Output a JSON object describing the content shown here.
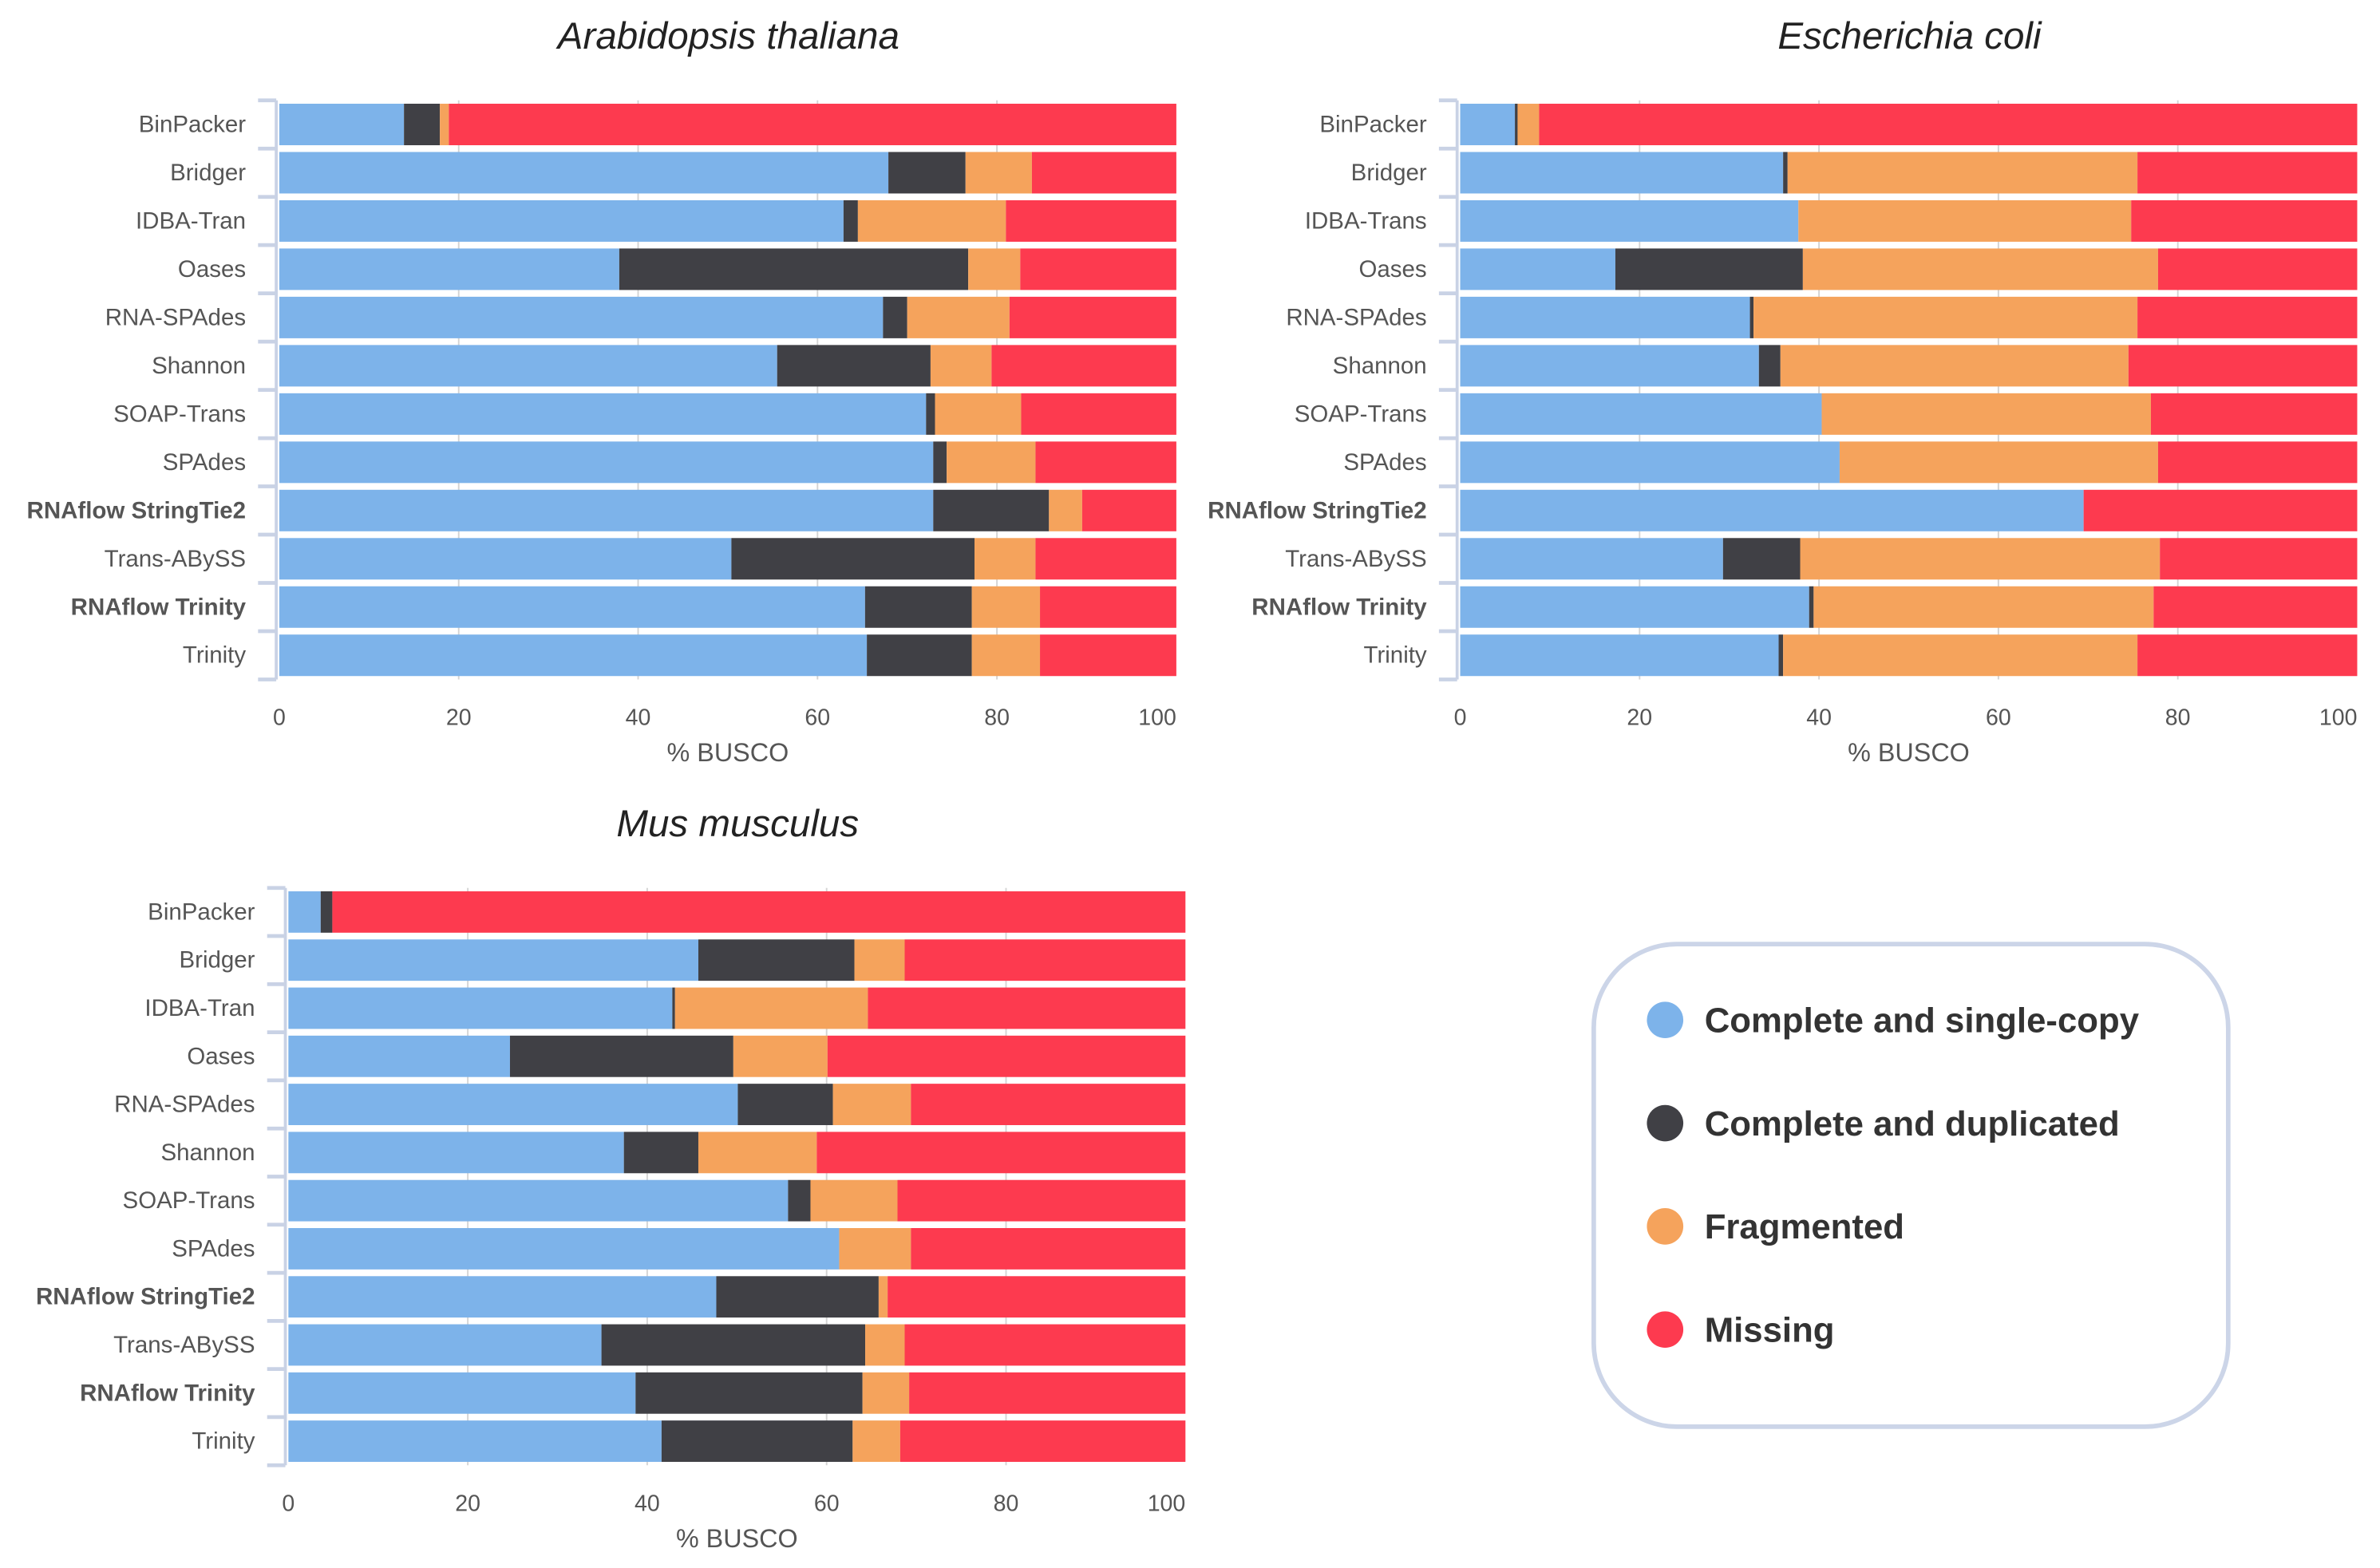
{
  "colors": {
    "Complete and single-copy": "#7db3ea",
    "Complete and duplicated": "#404045",
    "Fragmented": "#f5a35c",
    "Missing": "#fd3a4f"
  },
  "legend": {
    "items": [
      "Complete and single-copy",
      "Complete and duplicated",
      "Fragmented",
      "Missing"
    ],
    "placement": "bottom-right"
  },
  "chart_data": [
    {
      "type": "bar",
      "orientation": "horizontal",
      "stacked": true,
      "title": "Arabidopsis thaliana",
      "xlabel": "% BUSCO",
      "ylabel": "",
      "xlim": [
        0,
        100
      ],
      "xticks": [
        0,
        20,
        40,
        60,
        80,
        100
      ],
      "grid": true,
      "categories": [
        "BinPacker",
        "Bridger",
        "IDBA-Tran",
        "Oases",
        "RNA-SPAdes",
        "Shannon",
        "SOAP-Trans",
        "SPAdes",
        "RNAflow StringTie2",
        "Trans-ABySS",
        "RNAflow Trinity",
        "Trinity"
      ],
      "bold_categories": [
        "RNAflow StringTie2",
        "RNAflow Trinity"
      ],
      "series": [
        {
          "name": "Complete and single-copy",
          "values": [
            13.9,
            67.9,
            62.9,
            37.9,
            67.3,
            55.5,
            72.1,
            72.9,
            72.9,
            50.4,
            65.3,
            65.5
          ]
        },
        {
          "name": "Complete and duplicated",
          "values": [
            4.0,
            8.6,
            1.6,
            38.9,
            2.7,
            17.1,
            1.0,
            1.5,
            12.9,
            27.1,
            11.9,
            11.7
          ]
        },
        {
          "name": "Fragmented",
          "values": [
            1.0,
            7.4,
            16.5,
            5.8,
            11.4,
            6.8,
            9.6,
            9.9,
            3.7,
            6.8,
            7.6,
            7.6
          ]
        },
        {
          "name": "Missing",
          "values": [
            81.1,
            16.1,
            19.0,
            17.4,
            18.6,
            20.6,
            17.3,
            15.7,
            10.5,
            15.7,
            15.2,
            15.2
          ]
        }
      ]
    },
    {
      "type": "bar",
      "orientation": "horizontal",
      "stacked": true,
      "title": "Escherichia coli",
      "xlabel": "% BUSCO",
      "ylabel": "",
      "xlim": [
        0,
        100
      ],
      "xticks": [
        0,
        20,
        40,
        60,
        80,
        100
      ],
      "grid": true,
      "categories": [
        "BinPacker",
        "Bridger",
        "IDBA-Trans",
        "Oases",
        "RNA-SPAdes",
        "Shannon",
        "SOAP-Trans",
        "SPAdes",
        "RNAflow StringTie2",
        "Trans-ABySS",
        "RNAflow Trinity",
        "Trinity"
      ],
      "bold_categories": [
        "RNAflow StringTie2",
        "RNAflow Trinity"
      ],
      "series": [
        {
          "name": "Complete and single-copy",
          "values": [
            6.1,
            36.0,
            37.7,
            17.3,
            32.3,
            33.3,
            40.3,
            42.3,
            69.5,
            29.3,
            38.9,
            35.5
          ]
        },
        {
          "name": "Complete and duplicated",
          "values": [
            0.3,
            0.5,
            0.0,
            20.9,
            0.4,
            2.4,
            0.0,
            0.0,
            0.0,
            8.6,
            0.5,
            0.5
          ]
        },
        {
          "name": "Fragmented",
          "values": [
            2.4,
            39.0,
            37.1,
            39.6,
            42.8,
            38.8,
            36.7,
            35.5,
            0.0,
            40.1,
            37.9,
            39.5
          ]
        },
        {
          "name": "Missing",
          "values": [
            91.2,
            24.5,
            25.2,
            22.2,
            24.5,
            25.5,
            23.0,
            22.2,
            30.5,
            22.0,
            22.7,
            24.5
          ]
        }
      ]
    },
    {
      "type": "bar",
      "orientation": "horizontal",
      "stacked": true,
      "title": "Mus musculus",
      "xlabel": "% BUSCO",
      "ylabel": "",
      "xlim": [
        0,
        100
      ],
      "xticks": [
        0,
        20,
        40,
        60,
        80,
        100
      ],
      "grid": true,
      "categories": [
        "BinPacker",
        "Bridger",
        "IDBA-Tran",
        "Oases",
        "RNA-SPAdes",
        "Shannon",
        "SOAP-Trans",
        "SPAdes",
        "RNAflow StringTie2",
        "Trans-ABySS",
        "RNAflow Trinity",
        "Trinity"
      ],
      "bold_categories": [
        "RNAflow StringTie2",
        "RNAflow Trinity"
      ],
      "series": [
        {
          "name": "Complete and single-copy",
          "values": [
            3.6,
            45.7,
            42.8,
            24.7,
            50.1,
            37.4,
            55.7,
            61.4,
            47.7,
            34.9,
            38.7,
            41.6
          ]
        },
        {
          "name": "Complete and duplicated",
          "values": [
            1.3,
            17.4,
            0.3,
            24.9,
            10.6,
            8.3,
            2.5,
            0.0,
            18.1,
            29.4,
            25.3,
            21.3
          ]
        },
        {
          "name": "Fragmented",
          "values": [
            0.0,
            5.6,
            21.5,
            10.5,
            8.7,
            13.2,
            9.7,
            8.0,
            1.0,
            4.4,
            5.2,
            5.3
          ]
        },
        {
          "name": "Missing",
          "values": [
            95.1,
            31.3,
            35.4,
            39.9,
            30.6,
            41.1,
            32.1,
            30.6,
            33.2,
            31.3,
            30.8,
            31.8
          ]
        }
      ]
    }
  ]
}
